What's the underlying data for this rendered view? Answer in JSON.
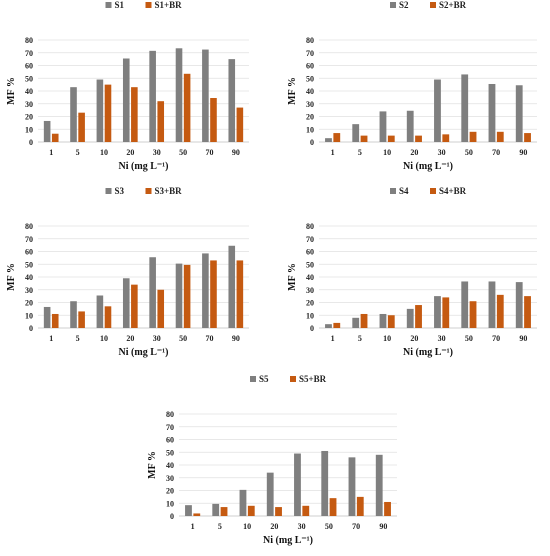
{
  "colors": {
    "gray": "#7f7f7f",
    "orange": "#c55a11"
  },
  "chart_data": [
    {
      "type": "bar",
      "categories": [
        "1",
        "5",
        "10",
        "20",
        "30",
        "50",
        "70",
        "90"
      ],
      "series": [
        {
          "name": "S1",
          "values": [
            16.5,
            43,
            49,
            65.5,
            71.5,
            73.5,
            72.5,
            65
          ]
        },
        {
          "name": "S1+BR",
          "values": [
            6.5,
            23,
            45,
            43,
            32,
            53.5,
            34.5,
            27
          ]
        }
      ],
      "xlabel": "Ni (mg L⁻¹)",
      "ylabel": "MF %",
      "ylim": [
        0,
        80
      ],
      "yticks": [
        "0",
        "10",
        "20",
        "30",
        "40",
        "50",
        "60",
        "70",
        "80"
      ],
      "legend": "top",
      "grid": true
    },
    {
      "type": "bar",
      "categories": [
        "1",
        "5",
        "10",
        "20",
        "30",
        "50",
        "70",
        "90"
      ],
      "series": [
        {
          "name": "S2",
          "values": [
            3,
            14,
            24,
            24.5,
            49,
            53,
            45.5,
            44.5
          ]
        },
        {
          "name": "S2+BR",
          "values": [
            7,
            5,
            5,
            5,
            6,
            8,
            8,
            7
          ]
        }
      ],
      "xlabel": "Ni (mg L⁻¹)",
      "ylabel": "MF %",
      "ylim": [
        0,
        80
      ],
      "yticks": [
        "0",
        "10",
        "20",
        "30",
        "40",
        "50",
        "60",
        "70",
        "80"
      ],
      "legend": "top",
      "grid": true
    },
    {
      "type": "bar",
      "categories": [
        "1",
        "5",
        "10",
        "20",
        "30",
        "50",
        "70",
        "90"
      ],
      "series": [
        {
          "name": "S3",
          "values": [
            16.5,
            21,
            25.5,
            39,
            55.5,
            50.5,
            58.5,
            64.5
          ]
        },
        {
          "name": "S3+BR",
          "values": [
            11,
            13,
            17,
            34,
            30,
            49.5,
            53,
            53
          ]
        }
      ],
      "xlabel": "Ni (mg L⁻¹)",
      "ylabel": "MF %",
      "ylim": [
        0,
        80
      ],
      "yticks": [
        "0",
        "10",
        "20",
        "30",
        "40",
        "50",
        "60",
        "70",
        "80"
      ],
      "legend": "top",
      "grid": true
    },
    {
      "type": "bar",
      "categories": [
        "1",
        "5",
        "10",
        "20",
        "30",
        "50",
        "70",
        "90"
      ],
      "series": [
        {
          "name": "S4",
          "values": [
            3,
            8,
            11,
            15,
            25,
            36.5,
            36.5,
            36
          ]
        },
        {
          "name": "S4+BR",
          "values": [
            4,
            11,
            10,
            18,
            24,
            21,
            26,
            25
          ]
        }
      ],
      "xlabel": "Ni (mg L⁻¹)",
      "ylabel": "MF %",
      "ylim": [
        0,
        80
      ],
      "yticks": [
        "0",
        "10",
        "20",
        "30",
        "40",
        "50",
        "60",
        "70",
        "80"
      ],
      "legend": "top",
      "grid": true
    },
    {
      "type": "bar",
      "categories": [
        "1",
        "5",
        "10",
        "20",
        "30",
        "50",
        "70",
        "90"
      ],
      "series": [
        {
          "name": "S5",
          "values": [
            8.5,
            9.5,
            20.5,
            34,
            49,
            51,
            46,
            48
          ]
        },
        {
          "name": "S5+BR",
          "values": [
            2,
            7,
            8,
            7,
            8,
            14,
            15,
            11
          ]
        }
      ],
      "xlabel": "Ni (mg L⁻¹)",
      "ylabel": "MF %",
      "ylim": [
        0,
        80
      ],
      "yticks": [
        "0",
        "10",
        "20",
        "30",
        "40",
        "50",
        "60",
        "70",
        "80"
      ],
      "legend": "top",
      "grid": true
    }
  ]
}
